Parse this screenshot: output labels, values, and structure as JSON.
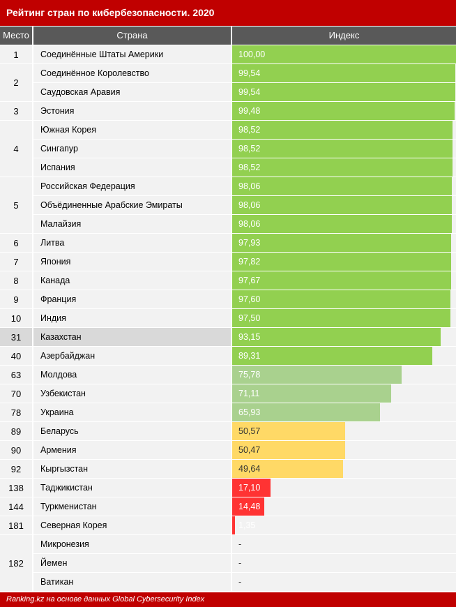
{
  "header": {
    "title": "Рейтинг стран по кибербезопасности. 2020"
  },
  "columns": {
    "rank": "Место",
    "country": "Страна",
    "index": "Индекс"
  },
  "footer": {
    "source": "Ranking.kz на основе данных Global Cybersecurity Index"
  },
  "colors": {
    "title_bg": "#c00000",
    "header_bg": "#595959",
    "top": "#92d050",
    "mid": "#a9d18e",
    "yellow": "#ffd966",
    "red": "#ff3333",
    "highlight": "#d9d9d9"
  },
  "chart_data": {
    "type": "table",
    "value_range": [
      0,
      100
    ],
    "groups": [
      {
        "rank": "1",
        "rows": [
          {
            "country": "Соединённые Штаты Америки",
            "index": 100.0,
            "label": "100,00",
            "tier": "top"
          }
        ]
      },
      {
        "rank": "2",
        "rows": [
          {
            "country": "Соединённое Королевство",
            "index": 99.54,
            "label": "99,54",
            "tier": "top"
          },
          {
            "country": "Саудовская Аравия",
            "index": 99.54,
            "label": "99,54",
            "tier": "top"
          }
        ]
      },
      {
        "rank": "3",
        "rows": [
          {
            "country": "Эстония",
            "index": 99.48,
            "label": "99,48",
            "tier": "top"
          }
        ]
      },
      {
        "rank": "4",
        "rows": [
          {
            "country": "Южная Корея",
            "index": 98.52,
            "label": "98,52",
            "tier": "top"
          },
          {
            "country": "Сингапур",
            "index": 98.52,
            "label": "98,52",
            "tier": "top"
          },
          {
            "country": "Испания",
            "index": 98.52,
            "label": "98,52",
            "tier": "top"
          }
        ]
      },
      {
        "rank": "5",
        "rows": [
          {
            "country": "Российская Федерация",
            "index": 98.06,
            "label": "98,06",
            "tier": "top"
          },
          {
            "country": "Объёдиненные Арабские Эмираты",
            "index": 98.06,
            "label": "98,06",
            "tier": "top"
          },
          {
            "country": "Малайзия",
            "index": 98.06,
            "label": "98,06",
            "tier": "top"
          }
        ]
      },
      {
        "rank": "6",
        "rows": [
          {
            "country": "Литва",
            "index": 97.93,
            "label": "97,93",
            "tier": "top"
          }
        ]
      },
      {
        "rank": "7",
        "rows": [
          {
            "country": "Япония",
            "index": 97.82,
            "label": "97,82",
            "tier": "top"
          }
        ]
      },
      {
        "rank": "8",
        "rows": [
          {
            "country": "Канада",
            "index": 97.67,
            "label": "97,67",
            "tier": "top"
          }
        ]
      },
      {
        "rank": "9",
        "rows": [
          {
            "country": "Франция",
            "index": 97.6,
            "label": "97,60",
            "tier": "top"
          }
        ]
      },
      {
        "rank": "10",
        "rows": [
          {
            "country": "Индия",
            "index": 97.5,
            "label": "97,50",
            "tier": "top"
          }
        ]
      },
      {
        "rank": "31",
        "highlight": true,
        "rows": [
          {
            "country": "Казахстан",
            "index": 93.15,
            "label": "93,15",
            "tier": "top"
          }
        ]
      },
      {
        "rank": "40",
        "rows": [
          {
            "country": "Азербайджан",
            "index": 89.31,
            "label": "89,31",
            "tier": "top"
          }
        ]
      },
      {
        "rank": "63",
        "rows": [
          {
            "country": "Молдова",
            "index": 75.78,
            "label": "75,78",
            "tier": "mid"
          }
        ]
      },
      {
        "rank": "70",
        "rows": [
          {
            "country": "Узбекистан",
            "index": 71.11,
            "label": "71,11",
            "tier": "mid"
          }
        ]
      },
      {
        "rank": "78",
        "rows": [
          {
            "country": "Украина",
            "index": 65.93,
            "label": "65,93",
            "tier": "mid"
          }
        ]
      },
      {
        "rank": "89",
        "rows": [
          {
            "country": "Беларусь",
            "index": 50.57,
            "label": "50,57",
            "tier": "yellow"
          }
        ]
      },
      {
        "rank": "90",
        "rows": [
          {
            "country": "Армения",
            "index": 50.47,
            "label": "50,47",
            "tier": "yellow"
          }
        ]
      },
      {
        "rank": "92",
        "rows": [
          {
            "country": "Кыргызстан",
            "index": 49.64,
            "label": "49,64",
            "tier": "yellow"
          }
        ]
      },
      {
        "rank": "138",
        "rows": [
          {
            "country": "Таджикистан",
            "index": 17.1,
            "label": "17,10",
            "tier": "red"
          }
        ]
      },
      {
        "rank": "144",
        "rows": [
          {
            "country": "Туркменистан",
            "index": 14.48,
            "label": "14,48",
            "tier": "red"
          }
        ]
      },
      {
        "rank": "181",
        "rows": [
          {
            "country": "Северная Корея",
            "index": 1.35,
            "label": "1,35",
            "tier": "red"
          }
        ]
      },
      {
        "rank": "182",
        "rows": [
          {
            "country": "Микронезия",
            "index": null,
            "label": "-",
            "tier": "none"
          },
          {
            "country": "Йемен",
            "index": null,
            "label": "-",
            "tier": "none"
          },
          {
            "country": "Ватикан",
            "index": null,
            "label": "-",
            "tier": "none"
          }
        ]
      }
    ]
  }
}
